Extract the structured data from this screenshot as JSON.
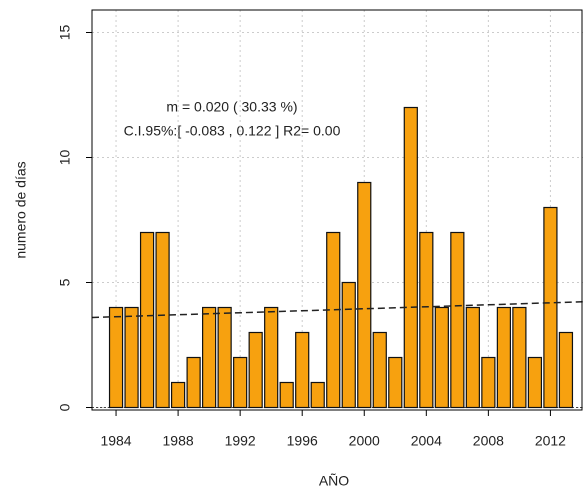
{
  "chart_data": {
    "type": "bar",
    "x_label": "AÑO",
    "y_label": "numero de días",
    "annotations": [
      "m =  0.020 ( 30.33 %)",
      "C.I.95%:[ -0.083 , 0.122 ]   R2= 0.00"
    ],
    "x": [
      1984,
      1985,
      1986,
      1987,
      1988,
      1989,
      1990,
      1991,
      1992,
      1993,
      1994,
      1995,
      1996,
      1997,
      1998,
      1999,
      2000,
      2001,
      2002,
      2003,
      2004,
      2005,
      2006,
      2007,
      2008,
      2009,
      2010,
      2011,
      2012,
      2013
    ],
    "values": [
      4,
      4,
      7,
      7,
      1,
      2,
      4,
      4,
      2,
      3,
      4,
      1,
      3,
      1,
      7,
      5,
      9,
      3,
      2,
      12,
      7,
      4,
      7,
      4,
      2,
      4,
      4,
      2,
      8,
      3
    ],
    "color": "#f7a10f",
    "xlim": [
      1982.45,
      2014.1
    ],
    "ylim": [
      -0.1,
      15.9
    ],
    "xticks": [
      1984,
      1988,
      1992,
      1996,
      2000,
      2004,
      2008,
      2012
    ],
    "yticks": [
      0,
      5,
      10,
      15
    ],
    "grid": true,
    "trend_line": {
      "x": [
        1982.45,
        2014.1
      ],
      "y": [
        3.6,
        4.23
      ]
    }
  }
}
